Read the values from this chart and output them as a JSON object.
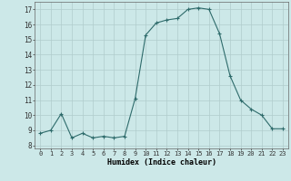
{
  "x": [
    0,
    1,
    2,
    3,
    4,
    5,
    6,
    7,
    8,
    9,
    10,
    11,
    12,
    13,
    14,
    15,
    16,
    17,
    18,
    19,
    20,
    21,
    22,
    23
  ],
  "y": [
    8.8,
    9.0,
    10.1,
    8.5,
    8.8,
    8.5,
    8.6,
    8.5,
    8.6,
    11.1,
    15.3,
    16.1,
    16.3,
    16.4,
    17.0,
    17.1,
    17.0,
    15.4,
    12.6,
    11.0,
    10.4,
    10.0,
    9.1,
    9.1
  ],
  "line_color": "#2e6b6b",
  "marker": "+",
  "bg_color": "#cce8e8",
  "grid_color": "#b0cccc",
  "xlabel": "Humidex (Indice chaleur)",
  "ylabel_ticks": [
    8,
    9,
    10,
    11,
    12,
    13,
    14,
    15,
    16,
    17
  ],
  "ylim": [
    7.8,
    17.5
  ],
  "xlim": [
    -0.5,
    23.5
  ]
}
